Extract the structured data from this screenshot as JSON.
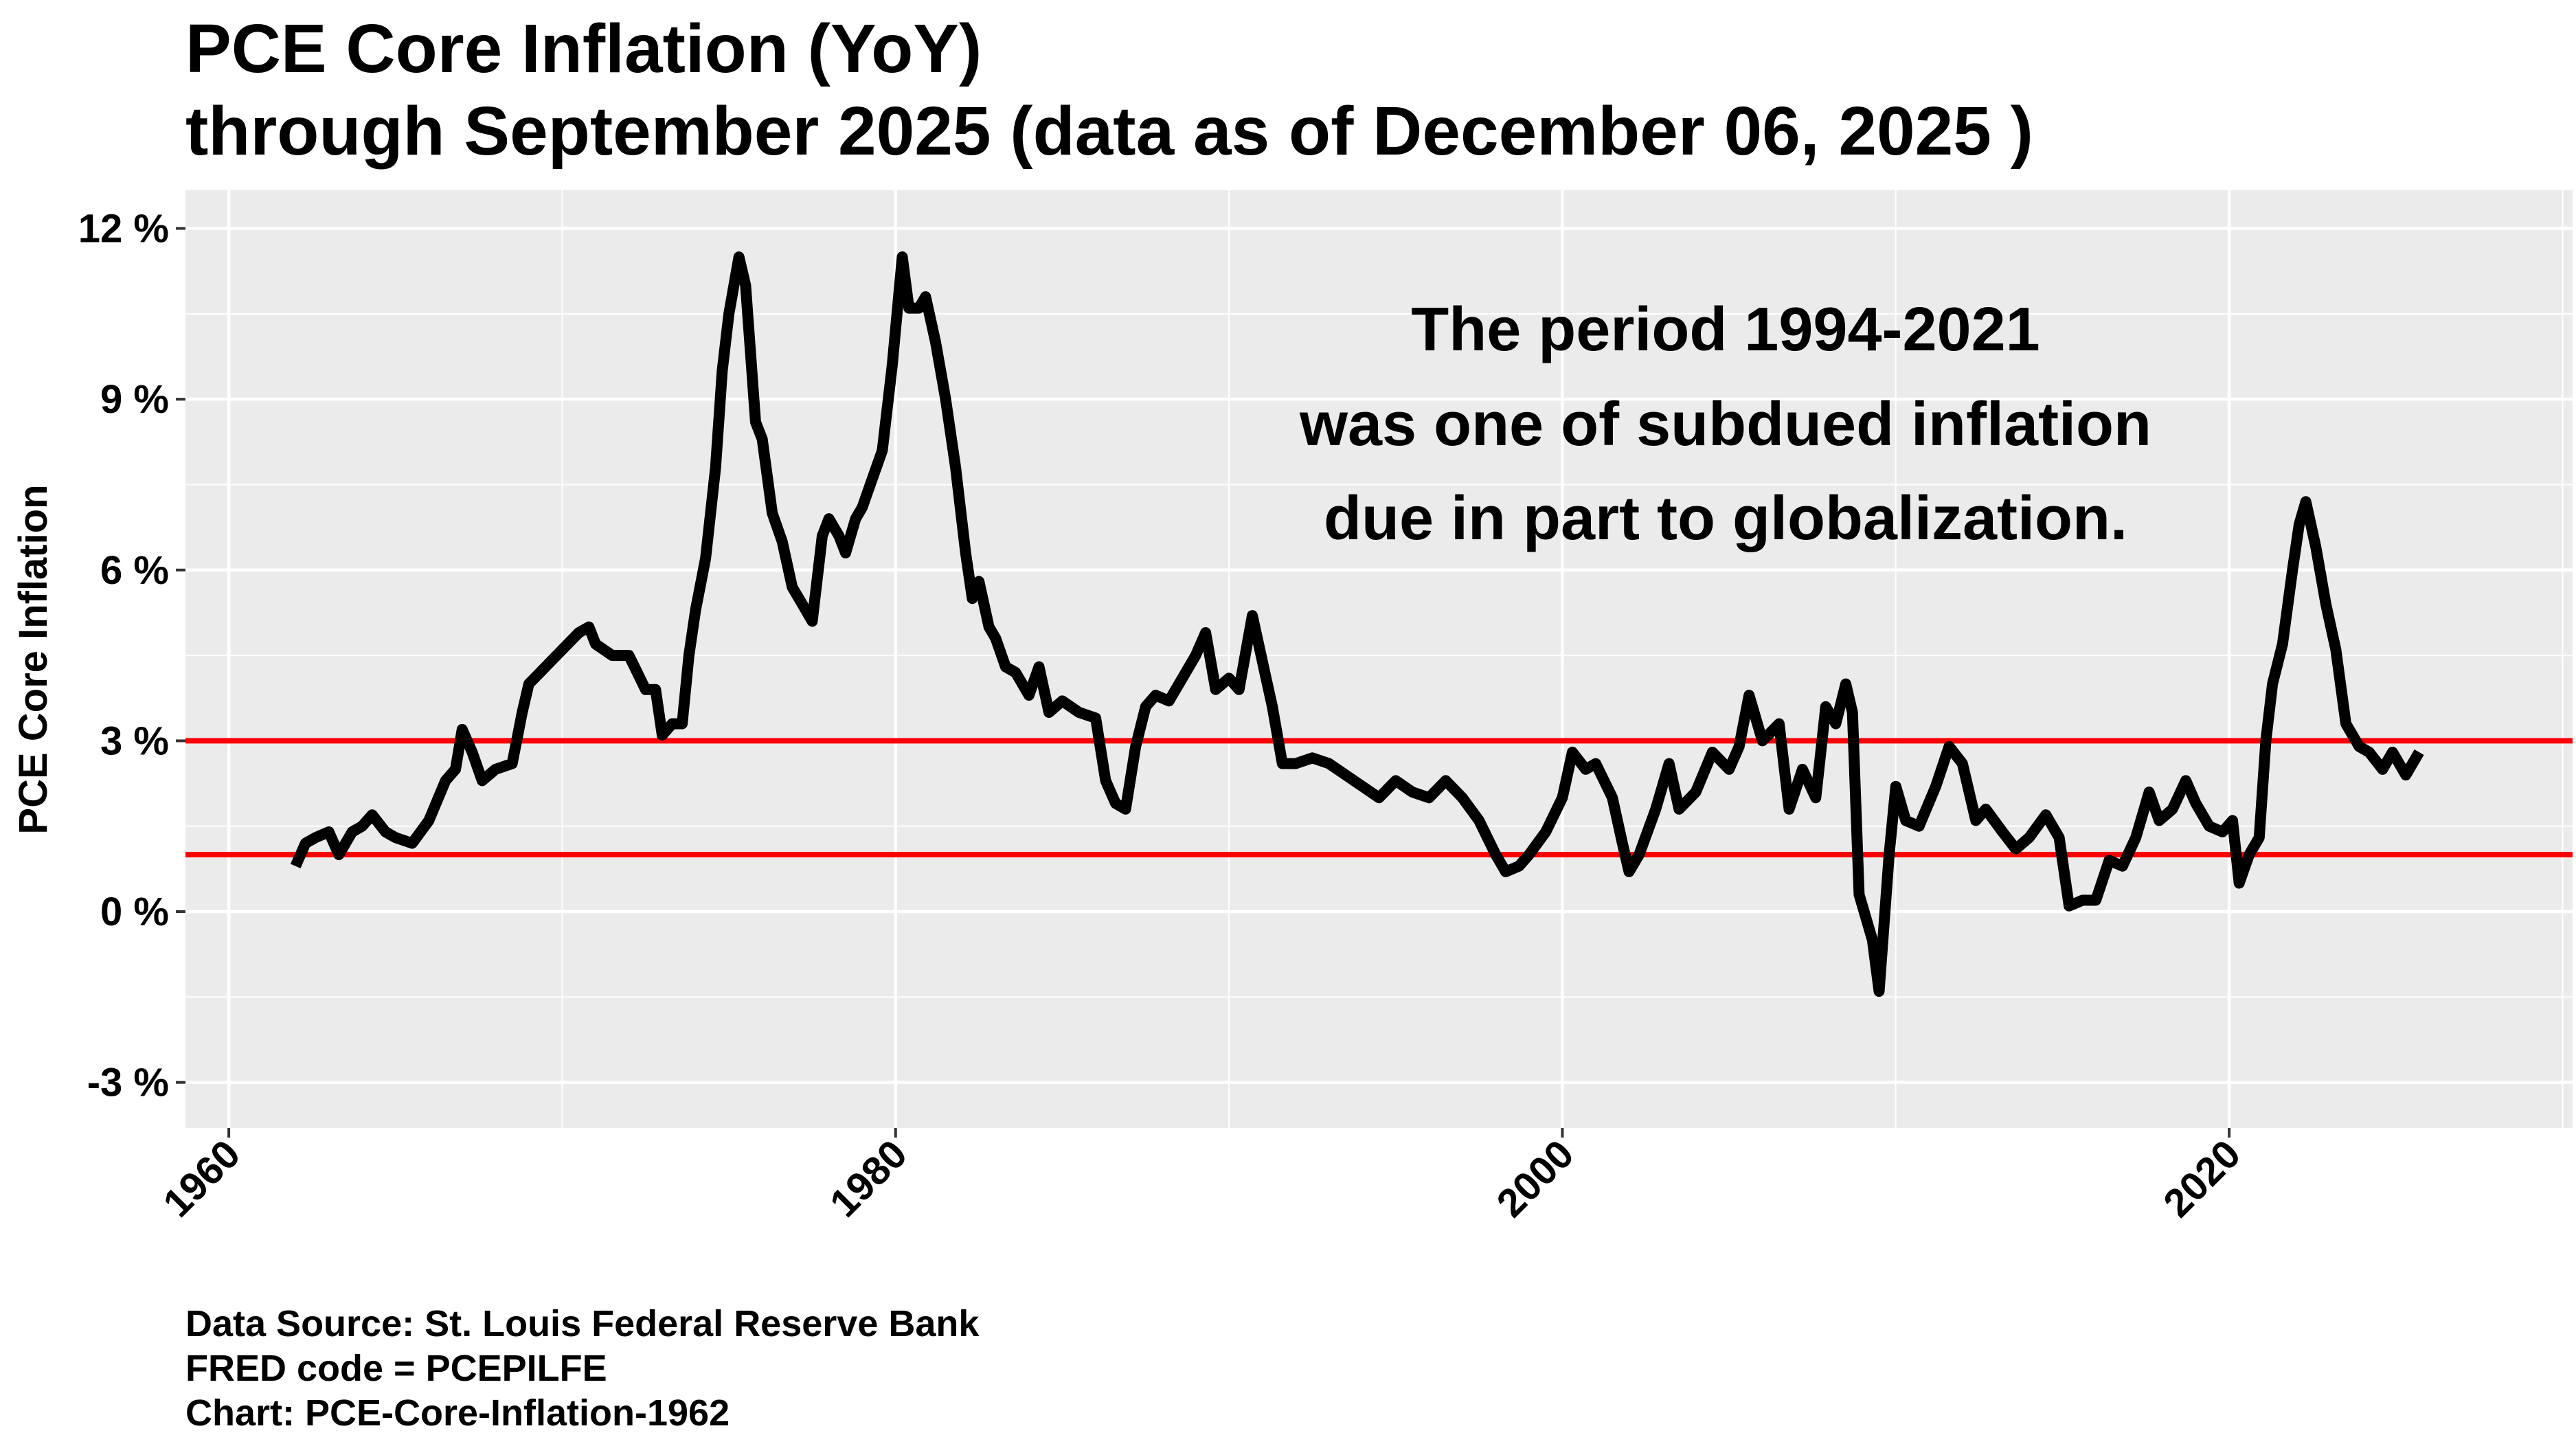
{
  "chart_data": {
    "type": "line",
    "title": "PCE Core Inflation (YoY)",
    "subtitle": "through September 2025 (data as of December 06, 2025 )",
    "xlabel": "",
    "ylabel": "PCE Core Inflation",
    "xlim": [
      1958.7,
      2030.3
    ],
    "ylim": [
      -3.8,
      12.67
    ],
    "x_ticks": [
      1960,
      1980,
      2000,
      2020
    ],
    "x_tick_labels": [
      "1960",
      "1980",
      "2000",
      "2020"
    ],
    "y_ticks": [
      -3,
      0,
      3,
      6,
      9,
      12
    ],
    "y_tick_labels": [
      "-3 %",
      "0 %",
      "3 %",
      "6 %",
      "9 %",
      "12 %"
    ],
    "grid": true,
    "colors": {
      "line": "#000000",
      "reference": "#FF0000",
      "panel": "#EBEBEB",
      "grid": "#FFFFFF"
    },
    "reference_lines": [
      3,
      1
    ],
    "annotation": [
      "The period 1994-2021",
      "was one of subdued inflation",
      "due in part to globalization."
    ],
    "series": [
      {
        "x": [
          1962.0,
          1962.3,
          1962.6,
          1963.0,
          1963.3,
          1963.7,
          1964.0,
          1964.3,
          1964.7,
          1965.0,
          1965.5,
          1966.0,
          1966.5,
          1966.8,
          1967.0,
          1967.3,
          1967.6,
          1968.0,
          1968.5,
          1968.8,
          1969.0,
          1969.5,
          1970.0,
          1970.5,
          1970.8,
          1971.0,
          1971.5,
          1972.0,
          1972.5,
          1972.8,
          1973.0,
          1973.3,
          1973.6,
          1973.8,
          1974.0,
          1974.3,
          1974.6,
          1974.8,
          1975.0,
          1975.3,
          1975.5,
          1975.8,
          1976.0,
          1976.3,
          1976.6,
          1976.9,
          1977.2,
          1977.5,
          1977.8,
          1978.0,
          1978.3,
          1978.5,
          1978.8,
          1979.0,
          1979.3,
          1979.6,
          1979.9,
          1980.2,
          1980.4,
          1980.7,
          1980.9,
          1981.2,
          1981.5,
          1981.8,
          1982.1,
          1982.3,
          1982.5,
          1982.8,
          1983.0,
          1983.3,
          1983.6,
          1984.0,
          1984.3,
          1984.6,
          1985.0,
          1985.5,
          1986.0,
          1986.3,
          1986.6,
          1986.9,
          1987.2,
          1987.5,
          1987.8,
          1988.2,
          1988.6,
          1989.0,
          1989.3,
          1989.6,
          1990.0,
          1990.3,
          1990.7,
          1991.0,
          1991.3,
          1991.6,
          1992.0,
          1992.5,
          1993.0,
          1993.5,
          1994.0,
          1994.5,
          1995.0,
          1995.5,
          1996.0,
          1996.5,
          1997.0,
          1997.5,
          1998.0,
          1998.3,
          1998.7,
          1999.0,
          1999.5,
          2000.0,
          2000.3,
          2000.7,
          2001.0,
          2001.5,
          2001.8,
          2002.0,
          2002.3,
          2002.8,
          2003.2,
          2003.5,
          2004.0,
          2004.5,
          2005.0,
          2005.3,
          2005.6,
          2006.0,
          2006.5,
          2006.8,
          2007.2,
          2007.6,
          2007.9,
          2008.2,
          2008.5,
          2008.7,
          2008.9,
          2009.3,
          2009.5,
          2009.8,
          2010.0,
          2010.3,
          2010.7,
          2011.2,
          2011.6,
          2012.0,
          2012.4,
          2012.7,
          2013.2,
          2013.6,
          2014.0,
          2014.5,
          2014.9,
          2015.2,
          2015.6,
          2016.0,
          2016.4,
          2016.8,
          2017.2,
          2017.6,
          2017.9,
          2018.3,
          2018.7,
          2019.0,
          2019.4,
          2019.8,
          2020.1,
          2020.3,
          2020.6,
          2020.9,
          2021.1,
          2021.3,
          2021.6,
          2021.9,
          2022.1,
          2022.3,
          2022.6,
          2022.9,
          2023.2,
          2023.5,
          2023.9,
          2024.2,
          2024.6,
          2024.9,
          2025.3,
          2025.7
        ],
        "y": [
          0.8,
          1.2,
          1.3,
          1.4,
          1.0,
          1.4,
          1.5,
          1.7,
          1.4,
          1.3,
          1.2,
          1.6,
          2.3,
          2.5,
          3.2,
          2.8,
          2.3,
          2.5,
          2.6,
          3.5,
          4.0,
          4.3,
          4.6,
          4.9,
          5.0,
          4.7,
          4.5,
          4.5,
          3.9,
          3.9,
          3.1,
          3.3,
          3.3,
          4.5,
          5.3,
          6.2,
          7.8,
          9.5,
          10.5,
          11.5,
          11.0,
          8.6,
          8.3,
          7.0,
          6.5,
          5.7,
          5.4,
          5.1,
          6.6,
          6.9,
          6.6,
          6.3,
          6.9,
          7.1,
          7.6,
          8.1,
          9.6,
          11.5,
          10.6,
          10.6,
          10.8,
          10.0,
          9.0,
          7.8,
          6.3,
          5.5,
          5.8,
          5.0,
          4.8,
          4.3,
          4.2,
          3.8,
          4.3,
          3.5,
          3.7,
          3.5,
          3.4,
          2.3,
          1.9,
          1.8,
          2.9,
          3.6,
          3.8,
          3.7,
          4.1,
          4.5,
          4.9,
          3.9,
          4.1,
          3.9,
          5.2,
          4.4,
          3.6,
          2.6,
          2.6,
          2.7,
          2.6,
          2.4,
          2.2,
          2.0,
          2.3,
          2.1,
          2.0,
          2.3,
          2.0,
          1.6,
          1.0,
          0.7,
          0.8,
          1.0,
          1.4,
          2.0,
          2.8,
          2.5,
          2.6,
          2.0,
          1.2,
          0.7,
          1.0,
          1.8,
          2.6,
          1.8,
          2.1,
          2.8,
          2.5,
          2.9,
          3.8,
          3.0,
          3.3,
          1.8,
          2.5,
          2.0,
          3.6,
          3.3,
          4.0,
          3.5,
          0.3,
          -0.5,
          -1.4,
          1.0,
          2.2,
          1.6,
          1.5,
          2.2,
          2.9,
          2.6,
          1.6,
          1.8,
          1.4,
          1.1,
          1.3,
          1.7,
          1.3,
          0.1,
          0.2,
          0.2,
          0.9,
          0.8,
          1.3,
          2.1,
          1.6,
          1.8,
          2.3,
          1.9,
          1.5,
          1.4,
          1.6,
          0.5,
          1.0,
          1.3,
          3.0,
          4.0,
          4.7,
          6.0,
          6.8,
          7.2,
          6.4,
          5.4,
          4.6,
          3.3,
          2.9,
          2.8,
          2.5,
          2.8,
          2.4,
          2.8
        ]
      }
    ]
  },
  "footer": {
    "line1": "Data Source:  St. Louis Federal Reserve Bank",
    "line2": "FRED code = PCEPILFE",
    "line3": "Chart: PCE-Core-Inflation-1962"
  }
}
